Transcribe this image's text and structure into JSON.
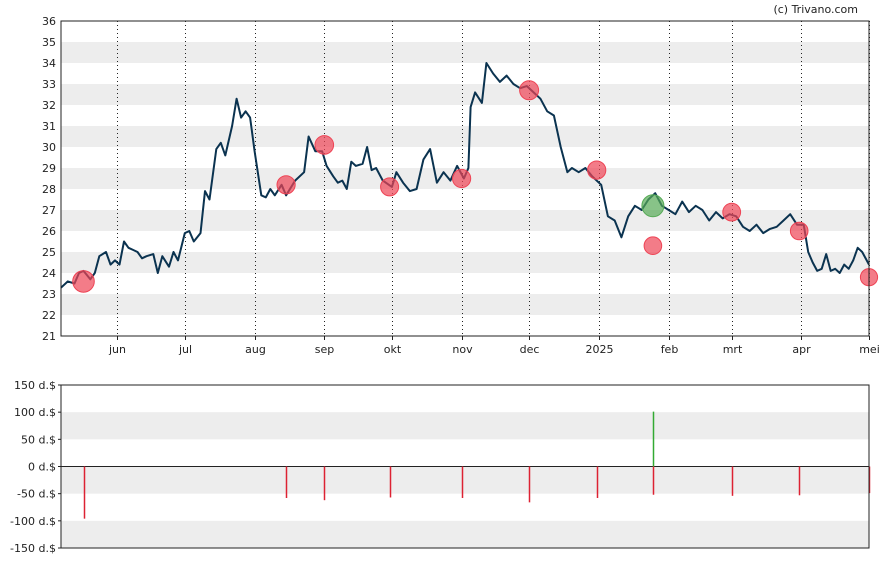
{
  "credit": "(c) Trivano.com",
  "colors": {
    "background": "#ffffff",
    "band": "#ededed",
    "axis": "#222222",
    "price_line": "#0b3350",
    "sell_marker": "#ee4455",
    "buy_marker": "#55aa55",
    "sell_bar": "#dd2233",
    "buy_bar": "#33aa33"
  },
  "chart_data": [
    {
      "type": "line",
      "title": "",
      "ylim": [
        21,
        36
      ],
      "y_ticks": [
        "21",
        "22",
        "23",
        "24",
        "25",
        "26",
        "27",
        "28",
        "29",
        "30",
        "31",
        "32",
        "33",
        "34",
        "35",
        "36"
      ],
      "x_range": [
        "2024-05-07",
        "2025-05-01"
      ],
      "x_ticks": [
        {
          "date": "2024-06-01",
          "label": "jun"
        },
        {
          "date": "2024-07-01",
          "label": "jul"
        },
        {
          "date": "2024-08-01",
          "label": "aug"
        },
        {
          "date": "2024-09-01",
          "label": "sep"
        },
        {
          "date": "2024-10-01",
          "label": "okt"
        },
        {
          "date": "2024-11-01",
          "label": "nov"
        },
        {
          "date": "2024-12-01",
          "label": "dec"
        },
        {
          "date": "2025-01-01",
          "label": "2025"
        },
        {
          "date": "2025-02-01",
          "label": "feb"
        },
        {
          "date": "2025-03-01",
          "label": "mrt"
        },
        {
          "date": "2025-04-01",
          "label": "apr"
        },
        {
          "date": "2025-05-01",
          "label": "mei"
        }
      ],
      "grid": "dotted vertical lines at month ticks, alternating horizontal bands",
      "series": [
        {
          "points": [
            [
              "2024-05-07",
              23.3
            ],
            [
              "2024-05-10",
              23.6
            ],
            [
              "2024-05-13",
              23.5
            ],
            [
              "2024-05-15",
              24.0
            ],
            [
              "2024-05-17",
              24.1
            ],
            [
              "2024-05-20",
              23.7
            ],
            [
              "2024-05-22",
              24.0
            ],
            [
              "2024-05-24",
              24.8
            ],
            [
              "2024-05-27",
              25.0
            ],
            [
              "2024-05-29",
              24.4
            ],
            [
              "2024-05-31",
              24.6
            ],
            [
              "2024-06-02",
              24.4
            ],
            [
              "2024-06-04",
              25.5
            ],
            [
              "2024-06-06",
              25.2
            ],
            [
              "2024-06-08",
              25.1
            ],
            [
              "2024-06-10",
              25.0
            ],
            [
              "2024-06-12",
              24.7
            ],
            [
              "2024-06-14",
              24.8
            ],
            [
              "2024-06-17",
              24.9
            ],
            [
              "2024-06-19",
              24.0
            ],
            [
              "2024-06-21",
              24.8
            ],
            [
              "2024-06-24",
              24.3
            ],
            [
              "2024-06-26",
              25.0
            ],
            [
              "2024-06-28",
              24.6
            ],
            [
              "2024-07-01",
              25.9
            ],
            [
              "2024-07-03",
              26.0
            ],
            [
              "2024-07-05",
              25.5
            ],
            [
              "2024-07-08",
              25.9
            ],
            [
              "2024-07-10",
              27.9
            ],
            [
              "2024-07-12",
              27.5
            ],
            [
              "2024-07-15",
              29.9
            ],
            [
              "2024-07-17",
              30.2
            ],
            [
              "2024-07-19",
              29.6
            ],
            [
              "2024-07-22",
              31.0
            ],
            [
              "2024-07-24",
              32.3
            ],
            [
              "2024-07-26",
              31.4
            ],
            [
              "2024-07-28",
              31.7
            ],
            [
              "2024-07-30",
              31.4
            ],
            [
              "2024-08-01",
              29.8
            ],
            [
              "2024-08-04",
              27.7
            ],
            [
              "2024-08-06",
              27.6
            ],
            [
              "2024-08-08",
              28.0
            ],
            [
              "2024-08-10",
              27.7
            ],
            [
              "2024-08-13",
              28.2
            ],
            [
              "2024-08-15",
              27.7
            ],
            [
              "2024-08-19",
              28.4
            ],
            [
              "2024-08-23",
              28.8
            ],
            [
              "2024-08-25",
              30.5
            ],
            [
              "2024-08-28",
              29.8
            ],
            [
              "2024-08-31",
              29.8
            ],
            [
              "2024-09-02",
              29.1
            ],
            [
              "2024-09-05",
              28.6
            ],
            [
              "2024-09-07",
              28.3
            ],
            [
              "2024-09-09",
              28.4
            ],
            [
              "2024-09-11",
              28.0
            ],
            [
              "2024-09-13",
              29.3
            ],
            [
              "2024-09-15",
              29.1
            ],
            [
              "2024-09-18",
              29.2
            ],
            [
              "2024-09-20",
              30.0
            ],
            [
              "2024-09-22",
              28.9
            ],
            [
              "2024-09-24",
              29.0
            ],
            [
              "2024-09-27",
              28.4
            ],
            [
              "2024-10-01",
              28.1
            ],
            [
              "2024-10-03",
              28.8
            ],
            [
              "2024-10-06",
              28.3
            ],
            [
              "2024-10-09",
              27.9
            ],
            [
              "2024-10-12",
              28.0
            ],
            [
              "2024-10-15",
              29.4
            ],
            [
              "2024-10-18",
              29.9
            ],
            [
              "2024-10-21",
              28.3
            ],
            [
              "2024-10-24",
              28.8
            ],
            [
              "2024-10-27",
              28.4
            ],
            [
              "2024-10-30",
              29.1
            ],
            [
              "2024-11-02",
              28.5
            ],
            [
              "2024-11-04",
              29.0
            ],
            [
              "2024-11-05",
              31.9
            ],
            [
              "2024-11-07",
              32.6
            ],
            [
              "2024-11-10",
              32.1
            ],
            [
              "2024-11-12",
              34.0
            ],
            [
              "2024-11-15",
              33.5
            ],
            [
              "2024-11-18",
              33.1
            ],
            [
              "2024-11-21",
              33.4
            ],
            [
              "2024-11-24",
              33.0
            ],
            [
              "2024-11-27",
              32.8
            ],
            [
              "2024-11-30",
              32.9
            ],
            [
              "2024-12-03",
              32.6
            ],
            [
              "2024-12-06",
              32.3
            ],
            [
              "2024-12-09",
              31.7
            ],
            [
              "2024-12-12",
              31.5
            ],
            [
              "2024-12-15",
              30.0
            ],
            [
              "2024-12-18",
              28.8
            ],
            [
              "2024-12-20",
              29.0
            ],
            [
              "2024-12-23",
              28.8
            ],
            [
              "2024-12-26",
              29.0
            ],
            [
              "2024-12-29",
              28.6
            ],
            [
              "2025-01-02",
              28.2
            ],
            [
              "2025-01-05",
              26.7
            ],
            [
              "2025-01-08",
              26.5
            ],
            [
              "2025-01-11",
              25.7
            ],
            [
              "2025-01-14",
              26.7
            ],
            [
              "2025-01-17",
              27.2
            ],
            [
              "2025-01-20",
              27.0
            ],
            [
              "2025-01-23",
              27.5
            ],
            [
              "2025-01-26",
              27.8
            ],
            [
              "2025-01-29",
              27.2
            ],
            [
              "2025-02-01",
              27.0
            ],
            [
              "2025-02-04",
              26.8
            ],
            [
              "2025-02-07",
              27.4
            ],
            [
              "2025-02-10",
              26.9
            ],
            [
              "2025-02-13",
              27.2
            ],
            [
              "2025-02-16",
              27.0
            ],
            [
              "2025-02-19",
              26.5
            ],
            [
              "2025-02-22",
              26.9
            ],
            [
              "2025-02-25",
              26.6
            ],
            [
              "2025-02-28",
              26.8
            ],
            [
              "2025-03-03",
              26.7
            ],
            [
              "2025-03-06",
              26.2
            ],
            [
              "2025-03-09",
              26.0
            ],
            [
              "2025-03-12",
              26.3
            ],
            [
              "2025-03-15",
              25.9
            ],
            [
              "2025-03-18",
              26.1
            ],
            [
              "2025-03-21",
              26.2
            ],
            [
              "2025-03-24",
              26.5
            ],
            [
              "2025-03-27",
              26.8
            ],
            [
              "2025-03-30",
              26.3
            ],
            [
              "2025-04-02",
              26.3
            ],
            [
              "2025-04-04",
              25.0
            ],
            [
              "2025-04-06",
              24.5
            ],
            [
              "2025-04-08",
              24.1
            ],
            [
              "2025-04-10",
              24.2
            ],
            [
              "2025-04-12",
              24.9
            ],
            [
              "2025-04-14",
              24.1
            ],
            [
              "2025-04-16",
              24.2
            ],
            [
              "2025-04-18",
              24.0
            ],
            [
              "2025-04-20",
              24.4
            ],
            [
              "2025-04-22",
              24.2
            ],
            [
              "2025-04-24",
              24.6
            ],
            [
              "2025-04-26",
              25.2
            ],
            [
              "2025-04-28",
              25.0
            ],
            [
              "2025-05-01",
              24.4
            ]
          ]
        }
      ],
      "markers": [
        {
          "date": "2024-05-17",
          "value": 23.6,
          "kind": "sell",
          "size": 96
        },
        {
          "date": "2024-08-15",
          "value": 28.2,
          "kind": "sell",
          "size": 58
        },
        {
          "date": "2024-09-01",
          "value": 30.1,
          "kind": "sell",
          "size": 62
        },
        {
          "date": "2024-09-30",
          "value": 28.1,
          "kind": "sell",
          "size": 57
        },
        {
          "date": "2024-11-01",
          "value": 28.5,
          "kind": "sell",
          "size": 58
        },
        {
          "date": "2024-12-01",
          "value": 32.7,
          "kind": "sell",
          "size": 66
        },
        {
          "date": "2024-12-31",
          "value": 28.9,
          "kind": "sell",
          "size": 58
        },
        {
          "date": "2025-01-25",
          "value": 27.2,
          "kind": "buy",
          "size": 101
        },
        {
          "date": "2025-01-25",
          "value": 25.3,
          "kind": "sell",
          "size": 52
        },
        {
          "date": "2025-03-01",
          "value": 26.9,
          "kind": "sell",
          "size": 54
        },
        {
          "date": "2025-03-31",
          "value": 26.0,
          "kind": "sell",
          "size": 53
        },
        {
          "date": "2025-05-01",
          "value": 23.8,
          "kind": "sell",
          "size": 49
        }
      ]
    },
    {
      "type": "bar",
      "title": "",
      "ylim": [
        -150,
        150
      ],
      "y_ticks": [
        "150 d.$",
        "100 d.$",
        "50 d.$",
        "0 d.$",
        "-50 d.$",
        "-100 d.$",
        "-150 d.$"
      ],
      "bars": [
        {
          "date": "2024-05-17",
          "value": -96
        },
        {
          "date": "2024-08-15",
          "value": -58
        },
        {
          "date": "2024-09-01",
          "value": -62
        },
        {
          "date": "2024-09-30",
          "value": -57
        },
        {
          "date": "2024-11-01",
          "value": -58
        },
        {
          "date": "2024-12-01",
          "value": -66
        },
        {
          "date": "2024-12-31",
          "value": -58
        },
        {
          "date": "2025-01-25",
          "value": 101
        },
        {
          "date": "2025-01-25",
          "value": -52
        },
        {
          "date": "2025-03-01",
          "value": -54
        },
        {
          "date": "2025-03-31",
          "value": -53
        },
        {
          "date": "2025-05-01",
          "value": -49
        }
      ]
    }
  ]
}
